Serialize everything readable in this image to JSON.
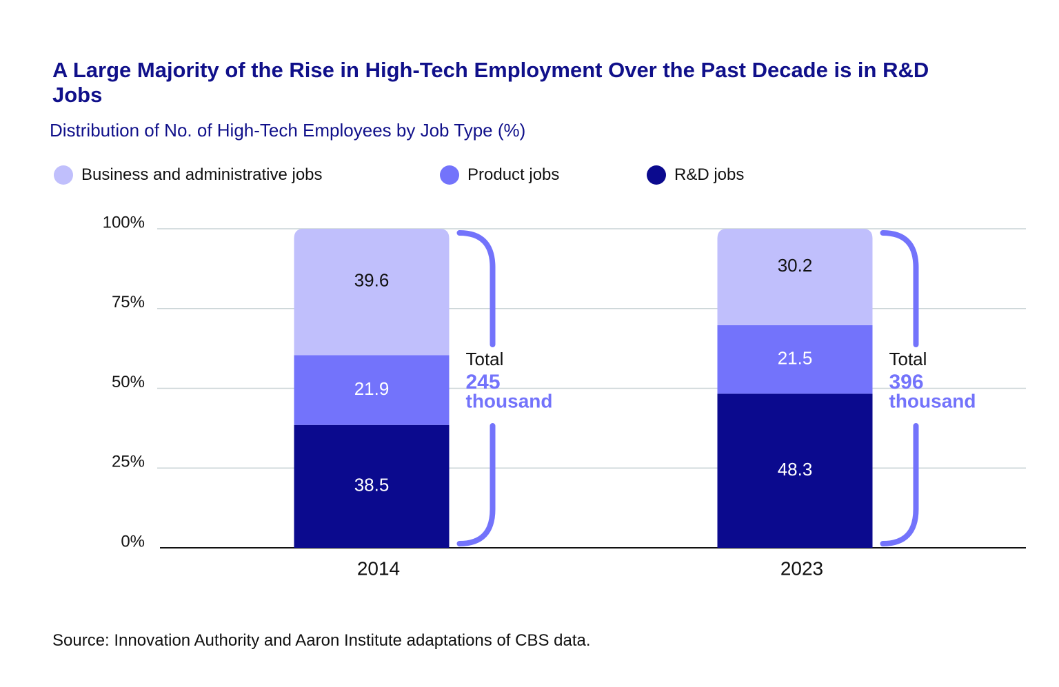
{
  "chart_data": {
    "type": "stacked_bar",
    "title": "A Large Majority of the Rise in High-Tech Employment Over the Past Decade is in R&D Jobs",
    "subtitle": "Distribution of No. of High-Tech Employees by Job Type (%)",
    "categories": [
      "2014",
      "2023"
    ],
    "series": [
      {
        "name": "R&D jobs",
        "color": "#0b0a8e",
        "values": [
          38.5,
          48.3
        ]
      },
      {
        "name": "Product jobs",
        "color": "#7373fb",
        "values": [
          21.9,
          21.5
        ]
      },
      {
        "name": "Business and administrative jobs",
        "color": "#c0bffc",
        "values": [
          39.6,
          30.2
        ]
      }
    ],
    "legend_order": [
      2,
      1,
      0
    ],
    "ylim": [
      0,
      100
    ],
    "yticks": [
      {
        "value": 0,
        "label": "0%"
      },
      {
        "value": 25,
        "label": "25%"
      },
      {
        "value": 50,
        "label": "50%"
      },
      {
        "value": 75,
        "label": "75%"
      },
      {
        "value": 100,
        "label": "100%"
      }
    ],
    "grid": true,
    "annotations": [
      {
        "text": "Total",
        "value": 245,
        "unit": "thousand"
      },
      {
        "text": "Total",
        "value": 396,
        "unit": "thousand"
      }
    ],
    "source": "Source: Innovation Authority and Aaron Institute adaptations of CBS data."
  }
}
